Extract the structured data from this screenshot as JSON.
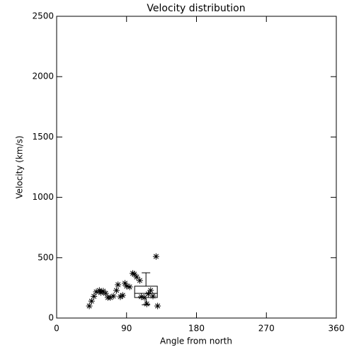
{
  "chart_data": {
    "type": "scatter",
    "title": "Velocity distribution",
    "x_label": "Angle from north",
    "y_label": "Velocity (km/s)",
    "x": [
      42,
      45,
      48,
      51,
      55,
      57,
      60,
      63,
      66,
      69,
      73,
      77,
      79,
      82,
      85,
      88,
      90,
      94,
      98,
      100,
      103,
      107,
      109,
      113,
      116,
      118,
      121,
      124,
      128,
      130
    ],
    "values": [
      100,
      140,
      180,
      217,
      229,
      211,
      223,
      205,
      170,
      170,
      182,
      229,
      276,
      176,
      188,
      288,
      264,
      258,
      370,
      364,
      340,
      311,
      176,
      170,
      117,
      200,
      229,
      182,
      510,
      100
    ],
    "color": "#000000",
    "box": {
      "x": 115,
      "whisker_low": 110,
      "q1": 170,
      "median": 205,
      "q3": 264,
      "whisker_high": 375
    },
    "xlim": [
      0,
      360
    ],
    "xticks": [
      0,
      90,
      180,
      270,
      360
    ],
    "ylim": [
      0,
      2500
    ],
    "yticks": [
      0,
      500,
      1000,
      1500,
      2000,
      2500
    ]
  }
}
